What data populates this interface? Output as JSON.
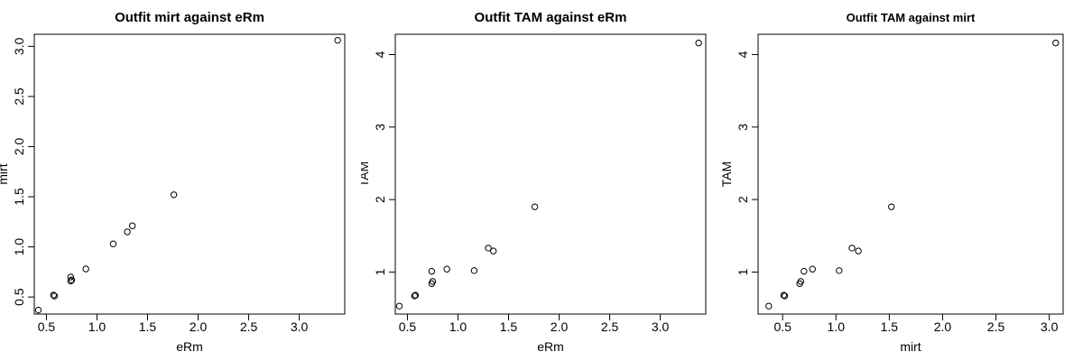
{
  "chart_data": [
    {
      "type": "scatter",
      "title": "Outfit mirt against eRm",
      "xlabel": "eRm",
      "ylabel": "mirt",
      "xlim": [
        0.38,
        3.45
      ],
      "ylim": [
        0.33,
        3.12
      ],
      "xticks": [
        0.5,
        1.0,
        1.5,
        2.0,
        2.5,
        3.0
      ],
      "xtick_labels": [
        "0.5",
        "1.0",
        "1.5",
        "2.0",
        "2.5",
        "3.0"
      ],
      "yticks": [
        0.5,
        1.0,
        1.5,
        2.0,
        2.5,
        3.0
      ],
      "ytick_labels": [
        "0.5",
        "1.0",
        "1.5",
        "2.0",
        "2.5",
        "3.0"
      ],
      "grid": false,
      "points": [
        [
          0.42,
          0.37
        ],
        [
          0.57,
          0.52
        ],
        [
          0.58,
          0.51
        ],
        [
          0.74,
          0.66
        ],
        [
          0.74,
          0.7
        ],
        [
          0.75,
          0.67
        ],
        [
          0.89,
          0.78
        ],
        [
          1.16,
          1.03
        ],
        [
          1.3,
          1.15
        ],
        [
          1.35,
          1.21
        ],
        [
          1.76,
          1.52
        ],
        [
          3.38,
          3.06
        ]
      ]
    },
    {
      "type": "scatter",
      "title": "Outfit TAM against eRm",
      "xlabel": "eRm",
      "ylabel": "TAM",
      "xlim": [
        0.38,
        3.45
      ],
      "ylim": [
        0.42,
        4.28
      ],
      "xticks": [
        0.5,
        1.0,
        1.5,
        2.0,
        2.5,
        3.0
      ],
      "xtick_labels": [
        "0.5",
        "1.0",
        "1.5",
        "2.0",
        "2.5",
        "3.0"
      ],
      "yticks": [
        1,
        2,
        3,
        4
      ],
      "ytick_labels": [
        "1",
        "2",
        "3",
        "4"
      ],
      "grid": false,
      "points": [
        [
          0.42,
          0.53
        ],
        [
          0.57,
          0.67
        ],
        [
          0.58,
          0.68
        ],
        [
          0.74,
          0.84
        ],
        [
          0.74,
          1.01
        ],
        [
          0.75,
          0.87
        ],
        [
          0.89,
          1.04
        ],
        [
          1.16,
          1.02
        ],
        [
          1.3,
          1.33
        ],
        [
          1.35,
          1.29
        ],
        [
          1.76,
          1.9
        ],
        [
          3.38,
          4.16
        ]
      ]
    },
    {
      "type": "scatter",
      "title": "Outfit TAM against mirt",
      "xlabel": "mirt",
      "ylabel": "TAM",
      "xlim": [
        0.27,
        3.13
      ],
      "ylim": [
        0.42,
        4.28
      ],
      "xticks": [
        0.5,
        1.0,
        1.5,
        2.0,
        2.5,
        3.0
      ],
      "xtick_labels": [
        "0.5",
        "1.0",
        "1.5",
        "2.0",
        "2.5",
        "3.0"
      ],
      "yticks": [
        1,
        2,
        3,
        4
      ],
      "ytick_labels": [
        "1",
        "2",
        "3",
        "4"
      ],
      "grid": false,
      "points": [
        [
          0.37,
          0.53
        ],
        [
          0.52,
          0.67
        ],
        [
          0.51,
          0.68
        ],
        [
          0.66,
          0.84
        ],
        [
          0.7,
          1.01
        ],
        [
          0.67,
          0.87
        ],
        [
          0.78,
          1.04
        ],
        [
          1.03,
          1.02
        ],
        [
          1.15,
          1.33
        ],
        [
          1.21,
          1.29
        ],
        [
          1.52,
          1.9
        ],
        [
          3.06,
          4.16
        ]
      ]
    }
  ]
}
